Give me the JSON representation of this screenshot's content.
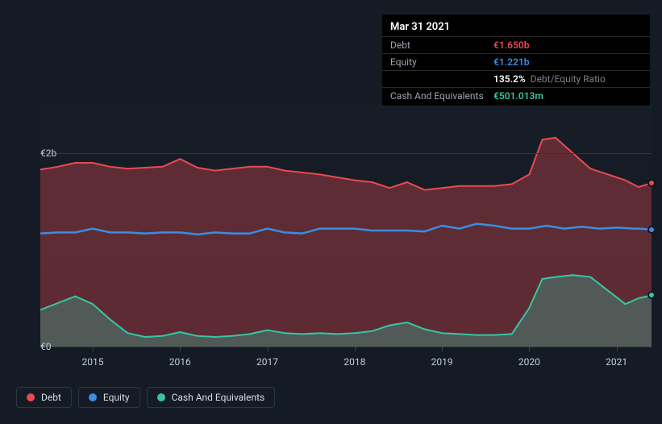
{
  "tooltip": {
    "date": "Mar 31 2021",
    "rows": [
      {
        "label": "Debt",
        "value": "€1.650b",
        "color": "#e84a52"
      },
      {
        "label": "Equity",
        "value": "€1.221b",
        "color": "#3a8de0"
      },
      {
        "label": "",
        "value": "135.2%",
        "extra": "Debt/Equity Ratio",
        "color": "#ffffff"
      },
      {
        "label": "Cash And Equivalents",
        "value": "€501.013m",
        "color": "#35c7a4"
      }
    ]
  },
  "chart": {
    "type": "area",
    "background_color": "#151b24",
    "grid_color": "#2b3544",
    "y_axis": {
      "min": 0,
      "max": 2.5,
      "ticks": [
        {
          "v": 0,
          "label": "€0"
        },
        {
          "v": 2,
          "label": "€2b"
        }
      ],
      "label_fontsize": 12,
      "label_color": "#c3cbd6"
    },
    "x_axis": {
      "min": 2014.4,
      "max": 2021.4,
      "ticks": [
        2015,
        2016,
        2017,
        2018,
        2019,
        2020,
        2021
      ],
      "label_fontsize": 12,
      "label_color": "#c3cbd6"
    },
    "series": [
      {
        "name": "Debt",
        "color": "#e84a52",
        "fill_opacity": 0.35,
        "line_width": 2,
        "data": [
          [
            2014.4,
            1.83
          ],
          [
            2014.6,
            1.86
          ],
          [
            2014.8,
            1.9
          ],
          [
            2015.0,
            1.9
          ],
          [
            2015.2,
            1.86
          ],
          [
            2015.4,
            1.84
          ],
          [
            2015.6,
            1.85
          ],
          [
            2015.8,
            1.86
          ],
          [
            2016.0,
            1.94
          ],
          [
            2016.2,
            1.85
          ],
          [
            2016.4,
            1.82
          ],
          [
            2016.6,
            1.84
          ],
          [
            2016.8,
            1.86
          ],
          [
            2017.0,
            1.86
          ],
          [
            2017.2,
            1.82
          ],
          [
            2017.4,
            1.8
          ],
          [
            2017.6,
            1.78
          ],
          [
            2017.8,
            1.75
          ],
          [
            2018.0,
            1.72
          ],
          [
            2018.2,
            1.7
          ],
          [
            2018.4,
            1.64
          ],
          [
            2018.6,
            1.7
          ],
          [
            2018.8,
            1.62
          ],
          [
            2019.0,
            1.64
          ],
          [
            2019.2,
            1.66
          ],
          [
            2019.4,
            1.66
          ],
          [
            2019.6,
            1.66
          ],
          [
            2019.8,
            1.68
          ],
          [
            2020.0,
            1.78
          ],
          [
            2020.15,
            2.14
          ],
          [
            2020.3,
            2.16
          ],
          [
            2020.5,
            2.0
          ],
          [
            2020.7,
            1.84
          ],
          [
            2020.9,
            1.78
          ],
          [
            2021.1,
            1.72
          ],
          [
            2021.25,
            1.65
          ],
          [
            2021.4,
            1.69
          ]
        ]
      },
      {
        "name": "Equity",
        "color": "#3a8de0",
        "fill_opacity": 0.0,
        "line_width": 2.5,
        "data": [
          [
            2014.4,
            1.17
          ],
          [
            2014.6,
            1.18
          ],
          [
            2014.8,
            1.18
          ],
          [
            2015.0,
            1.22
          ],
          [
            2015.2,
            1.18
          ],
          [
            2015.4,
            1.18
          ],
          [
            2015.6,
            1.17
          ],
          [
            2015.8,
            1.18
          ],
          [
            2016.0,
            1.18
          ],
          [
            2016.2,
            1.16
          ],
          [
            2016.4,
            1.18
          ],
          [
            2016.6,
            1.17
          ],
          [
            2016.8,
            1.17
          ],
          [
            2017.0,
            1.22
          ],
          [
            2017.2,
            1.18
          ],
          [
            2017.4,
            1.17
          ],
          [
            2017.6,
            1.22
          ],
          [
            2017.8,
            1.22
          ],
          [
            2018.0,
            1.22
          ],
          [
            2018.2,
            1.2
          ],
          [
            2018.4,
            1.2
          ],
          [
            2018.6,
            1.2
          ],
          [
            2018.8,
            1.19
          ],
          [
            2019.0,
            1.25
          ],
          [
            2019.2,
            1.22
          ],
          [
            2019.4,
            1.27
          ],
          [
            2019.6,
            1.25
          ],
          [
            2019.8,
            1.22
          ],
          [
            2020.0,
            1.22
          ],
          [
            2020.2,
            1.25
          ],
          [
            2020.4,
            1.22
          ],
          [
            2020.6,
            1.24
          ],
          [
            2020.8,
            1.22
          ],
          [
            2021.0,
            1.23
          ],
          [
            2021.2,
            1.22
          ],
          [
            2021.25,
            1.22
          ],
          [
            2021.4,
            1.21
          ]
        ]
      },
      {
        "name": "Cash And Equivalents",
        "color": "#35c7a4",
        "fill_opacity": 0.3,
        "line_width": 2,
        "data": [
          [
            2014.4,
            0.38
          ],
          [
            2014.6,
            0.45
          ],
          [
            2014.8,
            0.52
          ],
          [
            2015.0,
            0.44
          ],
          [
            2015.2,
            0.28
          ],
          [
            2015.4,
            0.14
          ],
          [
            2015.6,
            0.1
          ],
          [
            2015.8,
            0.11
          ],
          [
            2016.0,
            0.15
          ],
          [
            2016.2,
            0.11
          ],
          [
            2016.4,
            0.1
          ],
          [
            2016.6,
            0.11
          ],
          [
            2016.8,
            0.13
          ],
          [
            2017.0,
            0.17
          ],
          [
            2017.2,
            0.14
          ],
          [
            2017.4,
            0.13
          ],
          [
            2017.6,
            0.14
          ],
          [
            2017.8,
            0.13
          ],
          [
            2018.0,
            0.14
          ],
          [
            2018.2,
            0.16
          ],
          [
            2018.4,
            0.22
          ],
          [
            2018.6,
            0.25
          ],
          [
            2018.8,
            0.18
          ],
          [
            2019.0,
            0.14
          ],
          [
            2019.2,
            0.13
          ],
          [
            2019.4,
            0.12
          ],
          [
            2019.6,
            0.12
          ],
          [
            2019.8,
            0.13
          ],
          [
            2020.0,
            0.4
          ],
          [
            2020.15,
            0.7
          ],
          [
            2020.3,
            0.72
          ],
          [
            2020.5,
            0.74
          ],
          [
            2020.7,
            0.72
          ],
          [
            2020.9,
            0.58
          ],
          [
            2021.1,
            0.44
          ],
          [
            2021.25,
            0.5
          ],
          [
            2021.4,
            0.53
          ]
        ]
      }
    ],
    "highlight_x": 2021.25,
    "markers": [
      {
        "series": "Debt",
        "x": 2021.4,
        "color": "#e84a52"
      },
      {
        "series": "Equity",
        "x": 2021.4,
        "color": "#3a8de0"
      },
      {
        "series": "Cash And Equivalents",
        "x": 2021.4,
        "color": "#35c7a4"
      }
    ]
  },
  "legend": {
    "items": [
      {
        "label": "Debt",
        "color": "#e84a52"
      },
      {
        "label": "Equity",
        "color": "#3a8de0"
      },
      {
        "label": "Cash And Equivalents",
        "color": "#35c7a4"
      }
    ]
  }
}
